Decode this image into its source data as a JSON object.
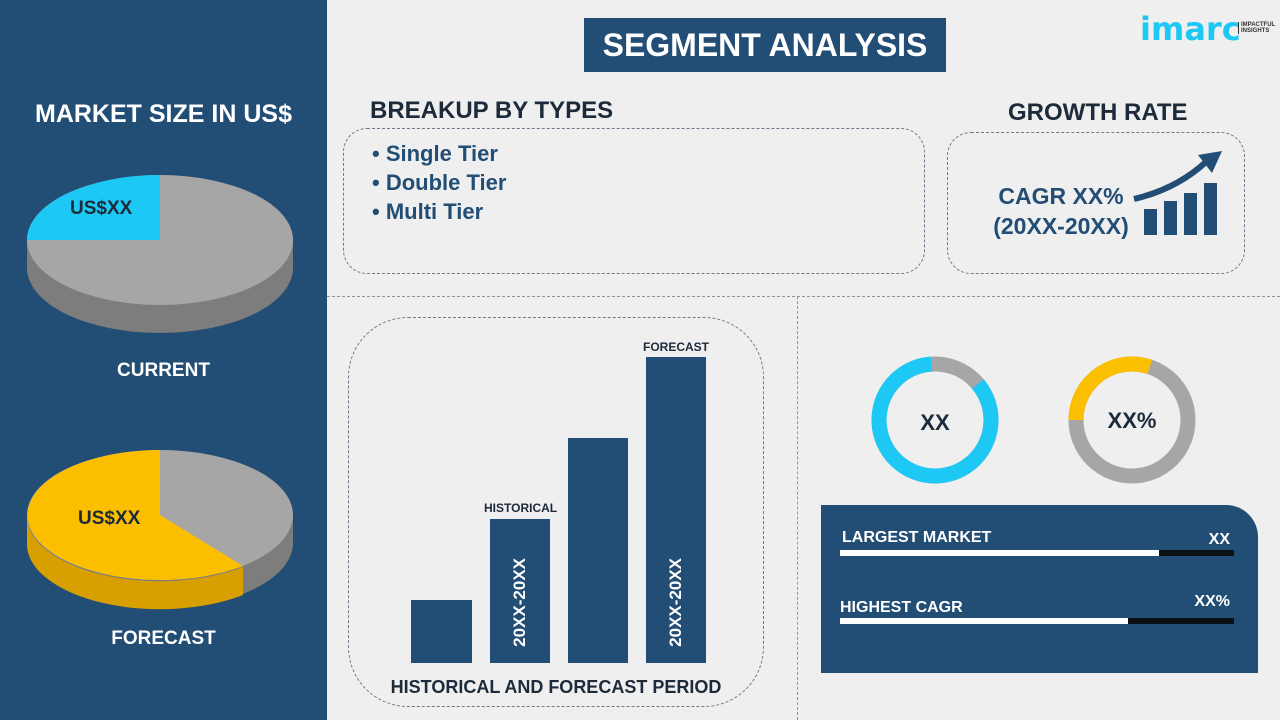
{
  "header": {
    "title": "SEGMENT ANALYSIS",
    "logo": "imarc",
    "logo_tagline": "IMPACTFUL INSIGHTS"
  },
  "market_size": {
    "title": "MARKET SIZE IN US$",
    "current": {
      "label": "CURRENT",
      "value": "US$XX",
      "share": 0.25
    },
    "forecast": {
      "label": "FORECAST",
      "value": "US$XX",
      "share": 0.6
    }
  },
  "breakup": {
    "title": "BREAKUP BY TYPES",
    "items": [
      "• Single Tier",
      "• Double Tier",
      "• Multi Tier"
    ]
  },
  "growth": {
    "title": "GROWTH RATE",
    "cagr": "CAGR XX%",
    "period": "(20XX-20XX)"
  },
  "period_chart": {
    "historical_label": "HISTORICAL",
    "forecast_label": "FORECAST",
    "historical_range": "20XX-20XX",
    "forecast_range": "20XX-20XX",
    "caption": "HISTORICAL AND FORECAST PERIOD",
    "relative_heights": [
      0.2,
      0.47,
      0.73,
      1.0
    ]
  },
  "donuts": [
    {
      "value": "XX",
      "share": 0.85,
      "color": "#1ec8f5"
    },
    {
      "value": "XX%",
      "share": 0.3,
      "color": "#fbbf00"
    }
  ],
  "stats": [
    {
      "label": "LARGEST MARKET",
      "value": "XX",
      "progress": 0.81
    },
    {
      "label": "HIGHEST CAGR",
      "value": "XX%",
      "progress": 0.73
    }
  ],
  "colors": {
    "navy": "#224d75",
    "cyan": "#1ec8f5",
    "yellow": "#fbbf00",
    "gray": "#a6a6a6"
  }
}
